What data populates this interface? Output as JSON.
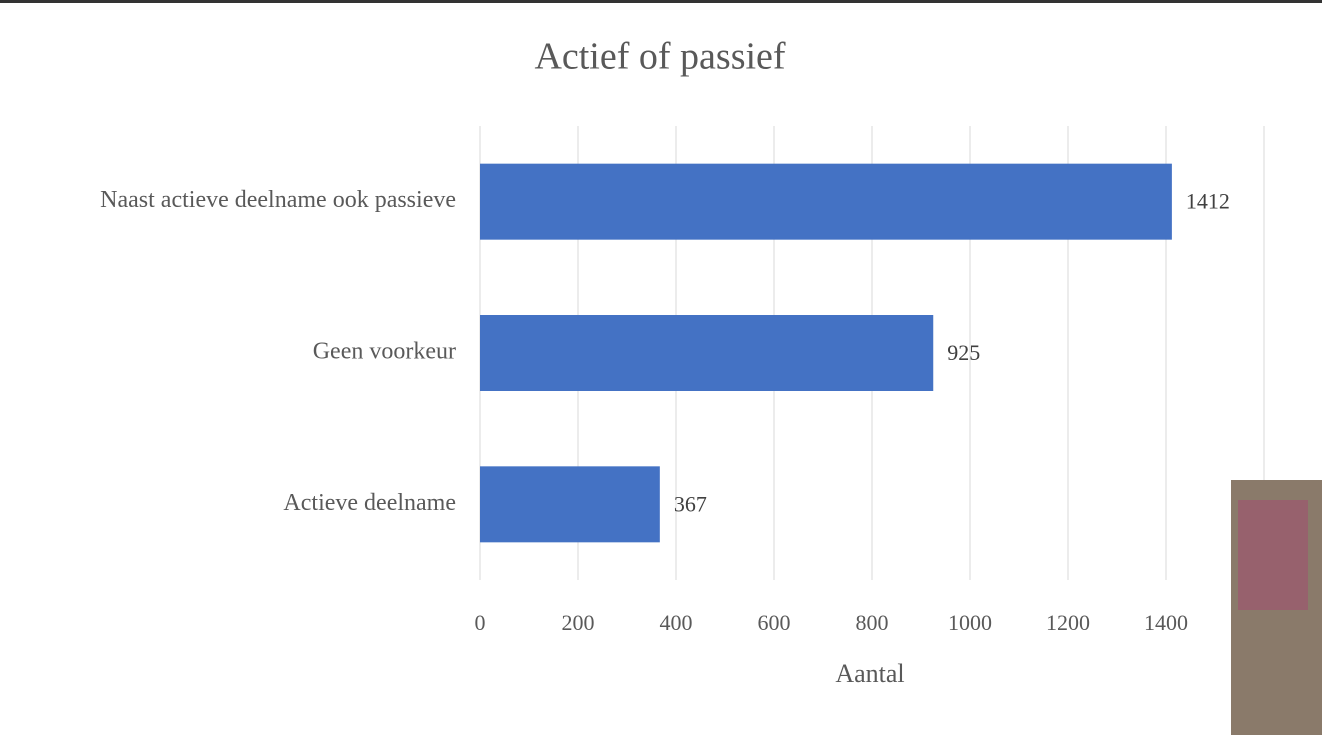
{
  "chart_data": {
    "type": "bar",
    "orientation": "horizontal",
    "title": "Actief of passief",
    "x_label": "Aantal",
    "categories": [
      "Naast actieve deelname ook passieve",
      "Geen voorkeur",
      "Actieve deelname"
    ],
    "values": [
      1412,
      925,
      367
    ],
    "color": "#4472c4",
    "xlim": [
      0,
      1600
    ],
    "xticks": [
      0,
      200,
      400,
      600,
      800,
      1000,
      1200,
      1400
    ],
    "grid": true
  }
}
